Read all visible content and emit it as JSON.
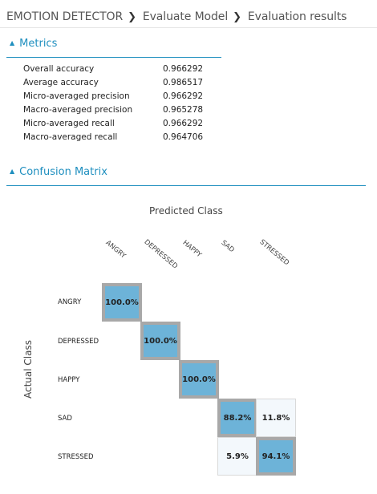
{
  "breadcrumb": {
    "items": [
      "EMOTION DETECTOR",
      "Evaluate Model",
      "Evaluation results"
    ],
    "separator_icon": "chevron-right-icon"
  },
  "metrics": {
    "title": "Metrics",
    "rows": [
      {
        "label": "Overall accuracy",
        "value": "0.966292"
      },
      {
        "label": "Average accuracy",
        "value": "0.986517"
      },
      {
        "label": "Micro-averaged precision",
        "value": "0.966292"
      },
      {
        "label": "Macro-averaged precision",
        "value": "0.965278"
      },
      {
        "label": "Micro-averaged recall",
        "value": "0.966292"
      },
      {
        "label": "Macro-averaged recall",
        "value": "0.964706"
      }
    ]
  },
  "confusion": {
    "title": "Confusion Matrix",
    "predicted_label": "Predicted Class",
    "actual_label": "Actual Class",
    "classes": [
      "ANGRY",
      "DEPRESSED",
      "HAPPY",
      "SAD",
      "STRESSED"
    ],
    "cells": [
      {
        "row": 0,
        "col": 0,
        "value": "100.0%",
        "strong": true
      },
      {
        "row": 1,
        "col": 1,
        "value": "100.0%",
        "strong": true
      },
      {
        "row": 2,
        "col": 2,
        "value": "100.0%",
        "strong": true
      },
      {
        "row": 3,
        "col": 3,
        "value": "88.2%",
        "strong": true
      },
      {
        "row": 3,
        "col": 4,
        "value": "11.8%",
        "strong": false
      },
      {
        "row": 4,
        "col": 3,
        "value": "5.9%",
        "strong": false
      },
      {
        "row": 4,
        "col": 4,
        "value": "94.1%",
        "strong": true
      }
    ],
    "colors": {
      "strong": "#6db3d8",
      "weak": "#f3f8fc",
      "accent": "#1f8fbf"
    }
  }
}
